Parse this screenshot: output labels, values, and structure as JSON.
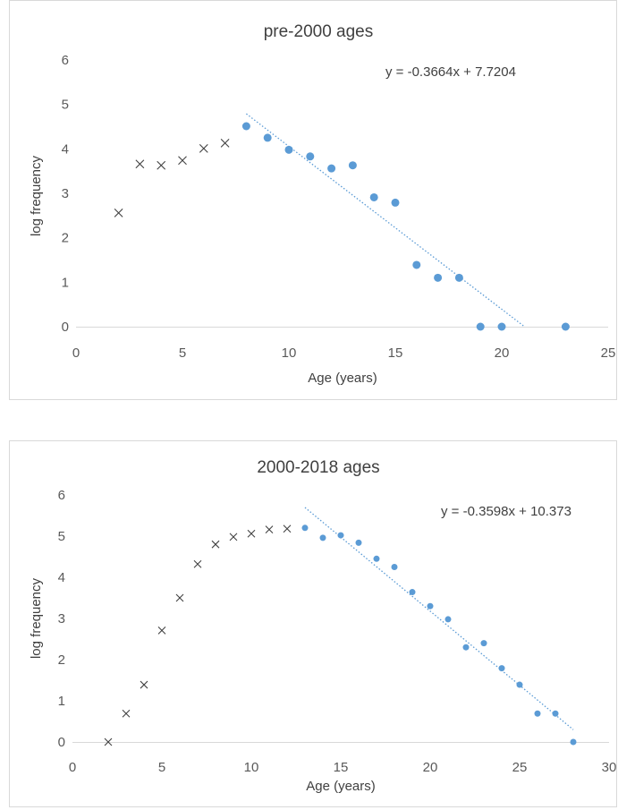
{
  "chart_data": [
    {
      "type": "scatter",
      "title": "pre-2000 ages",
      "xlabel": "Age (years)",
      "ylabel": "log frequency",
      "xlim": [
        0,
        25
      ],
      "ylim": [
        0,
        6
      ],
      "x_ticks": [
        "0",
        "5",
        "10",
        "15",
        "20",
        "25"
      ],
      "y_ticks": [
        "0",
        "1",
        "2",
        "3",
        "4",
        "5",
        "6"
      ],
      "grid": false,
      "series": [
        {
          "marker": "x",
          "color": "#404040",
          "points": [
            [
              2,
              2.56
            ],
            [
              3,
              3.66
            ],
            [
              4,
              3.63
            ],
            [
              5,
              3.74
            ],
            [
              6,
              4.01
            ],
            [
              7,
              4.13
            ]
          ]
        },
        {
          "marker": "circle",
          "color": "#5b9bd5",
          "points": [
            [
              8,
              4.51
            ],
            [
              9,
              4.25
            ],
            [
              10,
              3.98
            ],
            [
              11,
              3.83
            ],
            [
              12,
              3.56
            ],
            [
              13,
              3.63
            ],
            [
              14,
              2.91
            ],
            [
              15,
              2.79
            ],
            [
              16,
              1.39
            ],
            [
              17,
              1.1
            ],
            [
              18,
              1.1
            ],
            [
              19,
              0
            ],
            [
              20,
              0
            ],
            [
              23,
              0
            ]
          ]
        }
      ],
      "trendline": {
        "slope": -0.3664,
        "intercept": 7.7204,
        "x_range": [
          8,
          21.07
        ],
        "style": "dotted",
        "color": "#5b9bd5",
        "equation": "y = -0.3664x + 7.7204"
      }
    },
    {
      "type": "scatter",
      "title": "2000-2018 ages",
      "xlabel": "Age (years)",
      "ylabel": "log frequency",
      "xlim": [
        0,
        30
      ],
      "ylim": [
        0,
        6
      ],
      "x_ticks": [
        "0",
        "5",
        "10",
        "15",
        "20",
        "25",
        "30"
      ],
      "y_ticks": [
        "0",
        "1",
        "2",
        "3",
        "4",
        "5",
        "6"
      ],
      "grid": false,
      "series": [
        {
          "marker": "x",
          "color": "#404040",
          "points": [
            [
              2,
              0
            ],
            [
              3,
              0.69
            ],
            [
              4,
              1.39
            ],
            [
              5,
              2.71
            ],
            [
              6,
              3.5
            ],
            [
              7,
              4.32
            ],
            [
              8,
              4.8
            ],
            [
              9,
              4.98
            ],
            [
              10,
              5.06
            ],
            [
              11,
              5.16
            ],
            [
              12,
              5.18
            ]
          ]
        },
        {
          "marker": "circle",
          "color": "#5b9bd5",
          "points": [
            [
              13,
              5.2
            ],
            [
              14,
              4.96
            ],
            [
              15,
              5.02
            ],
            [
              16,
              4.84
            ],
            [
              17,
              4.45
            ],
            [
              18,
              4.25
            ],
            [
              19,
              3.64
            ],
            [
              20,
              3.3
            ],
            [
              21,
              2.98
            ],
            [
              22,
              2.3
            ],
            [
              23,
              2.4
            ],
            [
              24,
              1.79
            ],
            [
              25,
              1.39
            ],
            [
              26,
              0.69
            ],
            [
              27,
              0.69
            ],
            [
              28,
              0
            ]
          ]
        }
      ],
      "trendline": {
        "slope": -0.3598,
        "intercept": 10.373,
        "x_range": [
          13,
          28
        ],
        "style": "dotted",
        "color": "#5b9bd5",
        "equation": "y = -0.3598x + 10.373"
      }
    }
  ]
}
